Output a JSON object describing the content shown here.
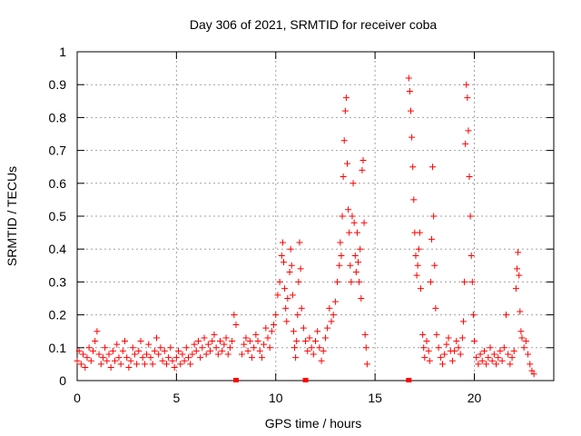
{
  "chart_data": {
    "type": "scatter",
    "title": "Day 306 of 2021, SRMTID for receiver coba",
    "xlabel": "GPS time / hours",
    "ylabel": "SRMTID / TECUs",
    "xlim": [
      0,
      24
    ],
    "ylim": [
      0,
      1
    ],
    "x_ticks": [
      0,
      5,
      10,
      15,
      20
    ],
    "x_tick_labels": [
      "0",
      "5",
      "10",
      "15",
      "20"
    ],
    "y_ticks": [
      0,
      0.1,
      0.2,
      0.3,
      0.4,
      0.5,
      0.6,
      0.7,
      0.8,
      0.9,
      1
    ],
    "y_tick_labels": [
      "0",
      "0.1",
      "0.2",
      "0.3",
      "0.4",
      "0.5",
      "0.6",
      "0.7",
      "0.8",
      "0.9",
      "1"
    ],
    "grid": true,
    "marker": "+",
    "series": [
      {
        "name": "SRMTID",
        "color": "#ff0000",
        "points": [
          [
            0.0,
            0.06
          ],
          [
            0.1,
            0.09
          ],
          [
            0.2,
            0.05
          ],
          [
            0.3,
            0.08
          ],
          [
            0.4,
            0.04
          ],
          [
            0.5,
            0.07
          ],
          [
            0.6,
            0.1
          ],
          [
            0.7,
            0.06
          ],
          [
            0.8,
            0.09
          ],
          [
            0.9,
            0.12
          ],
          [
            1.0,
            0.15
          ],
          [
            1.1,
            0.08
          ],
          [
            1.2,
            0.05
          ],
          [
            1.3,
            0.07
          ],
          [
            1.4,
            0.1
          ],
          [
            1.5,
            0.06
          ],
          [
            1.6,
            0.08
          ],
          [
            1.7,
            0.04
          ],
          [
            1.8,
            0.09
          ],
          [
            1.9,
            0.06
          ],
          [
            2.0,
            0.11
          ],
          [
            2.1,
            0.07
          ],
          [
            2.2,
            0.05
          ],
          [
            2.3,
            0.09
          ],
          [
            2.4,
            0.12
          ],
          [
            2.5,
            0.07
          ],
          [
            2.6,
            0.04
          ],
          [
            2.7,
            0.06
          ],
          [
            2.8,
            0.1
          ],
          [
            2.9,
            0.08
          ],
          [
            3.0,
            0.05
          ],
          [
            3.1,
            0.09
          ],
          [
            3.2,
            0.12
          ],
          [
            3.3,
            0.07
          ],
          [
            3.4,
            0.05
          ],
          [
            3.5,
            0.08
          ],
          [
            3.6,
            0.11
          ],
          [
            3.7,
            0.07
          ],
          [
            3.8,
            0.05
          ],
          [
            3.9,
            0.09
          ],
          [
            4.0,
            0.13
          ],
          [
            4.1,
            0.08
          ],
          [
            4.2,
            0.1
          ],
          [
            4.3,
            0.06
          ],
          [
            4.4,
            0.09
          ],
          [
            4.5,
            0.05
          ],
          [
            4.6,
            0.07
          ],
          [
            4.7,
            0.1
          ],
          [
            4.8,
            0.06
          ],
          [
            4.9,
            0.04
          ],
          [
            5.0,
            0.07
          ],
          [
            5.1,
            0.09
          ],
          [
            5.2,
            0.05
          ],
          [
            5.3,
            0.08
          ],
          [
            5.4,
            0.06
          ],
          [
            5.5,
            0.1
          ],
          [
            5.6,
            0.07
          ],
          [
            5.7,
            0.05
          ],
          [
            5.8,
            0.08
          ],
          [
            5.9,
            0.11
          ],
          [
            6.0,
            0.09
          ],
          [
            6.1,
            0.12
          ],
          [
            6.2,
            0.07
          ],
          [
            6.3,
            0.1
          ],
          [
            6.4,
            0.13
          ],
          [
            6.5,
            0.08
          ],
          [
            6.6,
            0.11
          ],
          [
            6.7,
            0.09
          ],
          [
            6.8,
            0.12
          ],
          [
            6.9,
            0.14
          ],
          [
            7.0,
            0.1
          ],
          [
            7.1,
            0.08
          ],
          [
            7.2,
            0.12
          ],
          [
            7.3,
            0.09
          ],
          [
            7.4,
            0.11
          ],
          [
            7.5,
            0.13
          ],
          [
            7.6,
            0.08
          ],
          [
            7.7,
            0.1
          ],
          [
            7.8,
            0.12
          ],
          [
            7.9,
            0.2
          ],
          [
            8.0,
            0.17
          ],
          [
            8.3,
            0.08
          ],
          [
            8.4,
            0.11
          ],
          [
            8.5,
            0.13
          ],
          [
            8.6,
            0.09
          ],
          [
            8.7,
            0.12
          ],
          [
            8.8,
            0.07
          ],
          [
            8.9,
            0.1
          ],
          [
            9.0,
            0.14
          ],
          [
            9.1,
            0.12
          ],
          [
            9.2,
            0.09
          ],
          [
            9.3,
            0.07
          ],
          [
            9.4,
            0.11
          ],
          [
            9.5,
            0.16
          ],
          [
            9.6,
            0.13
          ],
          [
            9.7,
            0.1
          ],
          [
            9.8,
            0.15
          ],
          [
            9.9,
            0.17
          ],
          [
            10.0,
            0.2
          ],
          [
            10.1,
            0.26
          ],
          [
            10.2,
            0.3
          ],
          [
            10.3,
            0.38
          ],
          [
            10.35,
            0.42
          ],
          [
            10.4,
            0.36
          ],
          [
            10.45,
            0.28
          ],
          [
            10.5,
            0.22
          ],
          [
            10.55,
            0.18
          ],
          [
            10.6,
            0.25
          ],
          [
            10.7,
            0.33
          ],
          [
            10.75,
            0.4
          ],
          [
            10.8,
            0.35
          ],
          [
            10.85,
            0.26
          ],
          [
            10.9,
            0.15
          ],
          [
            10.95,
            0.1
          ],
          [
            11.0,
            0.07
          ],
          [
            11.05,
            0.12
          ],
          [
            11.1,
            0.2
          ],
          [
            11.15,
            0.3
          ],
          [
            11.2,
            0.42
          ],
          [
            11.25,
            0.34
          ],
          [
            11.3,
            0.22
          ],
          [
            11.4,
            0.16
          ],
          [
            11.5,
            0.12
          ],
          [
            11.6,
            0.09
          ],
          [
            11.7,
            0.13
          ],
          [
            11.8,
            0.1
          ],
          [
            11.9,
            0.08
          ],
          [
            12.0,
            0.12
          ],
          [
            12.1,
            0.15
          ],
          [
            12.2,
            0.1
          ],
          [
            12.3,
            0.06
          ],
          [
            12.4,
            0.09
          ],
          [
            12.5,
            0.13
          ],
          [
            12.6,
            0.16
          ],
          [
            12.7,
            0.22
          ],
          [
            12.8,
            0.18
          ],
          [
            12.9,
            0.2
          ],
          [
            13.0,
            0.24
          ],
          [
            13.1,
            0.3
          ],
          [
            13.2,
            0.35
          ],
          [
            13.25,
            0.42
          ],
          [
            13.3,
            0.38
          ],
          [
            13.35,
            0.5
          ],
          [
            13.4,
            0.62
          ],
          [
            13.45,
            0.73
          ],
          [
            13.5,
            0.82
          ],
          [
            13.55,
            0.86
          ],
          [
            13.6,
            0.66
          ],
          [
            13.65,
            0.52
          ],
          [
            13.7,
            0.45
          ],
          [
            13.75,
            0.35
          ],
          [
            13.8,
            0.3
          ],
          [
            13.85,
            0.5
          ],
          [
            13.9,
            0.6
          ],
          [
            13.95,
            0.48
          ],
          [
            14.0,
            0.38
          ],
          [
            14.05,
            0.33
          ],
          [
            14.1,
            0.45
          ],
          [
            14.15,
            0.36
          ],
          [
            14.2,
            0.3
          ],
          [
            14.25,
            0.4
          ],
          [
            14.3,
            0.25
          ],
          [
            14.35,
            0.64
          ],
          [
            14.4,
            0.67
          ],
          [
            14.45,
            0.48
          ],
          [
            14.5,
            0.14
          ],
          [
            14.55,
            0.1
          ],
          [
            14.6,
            0.05
          ],
          [
            16.7,
            0.92
          ],
          [
            16.75,
            0.88
          ],
          [
            16.8,
            0.82
          ],
          [
            16.85,
            0.74
          ],
          [
            16.9,
            0.65
          ],
          [
            16.95,
            0.55
          ],
          [
            17.0,
            0.45
          ],
          [
            17.05,
            0.38
          ],
          [
            17.1,
            0.32
          ],
          [
            17.15,
            0.35
          ],
          [
            17.2,
            0.4
          ],
          [
            17.25,
            0.45
          ],
          [
            17.3,
            0.28
          ],
          [
            17.4,
            0.14
          ],
          [
            17.45,
            0.1
          ],
          [
            17.5,
            0.07
          ],
          [
            17.6,
            0.12
          ],
          [
            17.7,
            0.09
          ],
          [
            17.75,
            0.06
          ],
          [
            17.8,
            0.3
          ],
          [
            17.85,
            0.43
          ],
          [
            17.9,
            0.65
          ],
          [
            17.95,
            0.5
          ],
          [
            18.0,
            0.35
          ],
          [
            18.05,
            0.22
          ],
          [
            18.1,
            0.14
          ],
          [
            18.2,
            0.1
          ],
          [
            18.3,
            0.07
          ],
          [
            18.4,
            0.05
          ],
          [
            18.5,
            0.08
          ],
          [
            18.6,
            0.11
          ],
          [
            18.7,
            0.13
          ],
          [
            18.8,
            0.09
          ],
          [
            18.9,
            0.06
          ],
          [
            19.0,
            0.09
          ],
          [
            19.1,
            0.12
          ],
          [
            19.2,
            0.1
          ],
          [
            19.3,
            0.08
          ],
          [
            19.4,
            0.13
          ],
          [
            19.45,
            0.18
          ],
          [
            19.5,
            0.3
          ],
          [
            19.55,
            0.72
          ],
          [
            19.6,
            0.9
          ],
          [
            19.65,
            0.86
          ],
          [
            19.7,
            0.76
          ],
          [
            19.75,
            0.62
          ],
          [
            19.8,
            0.5
          ],
          [
            19.85,
            0.38
          ],
          [
            19.9,
            0.3
          ],
          [
            19.95,
            0.2
          ],
          [
            20.0,
            0.12
          ],
          [
            20.1,
            0.07
          ],
          [
            20.2,
            0.05
          ],
          [
            20.3,
            0.08
          ],
          [
            20.4,
            0.06
          ],
          [
            20.5,
            0.09
          ],
          [
            20.6,
            0.05
          ],
          [
            20.7,
            0.07
          ],
          [
            20.8,
            0.1
          ],
          [
            20.9,
            0.06
          ],
          [
            21.0,
            0.08
          ],
          [
            21.1,
            0.05
          ],
          [
            21.2,
            0.07
          ],
          [
            21.3,
            0.09
          ],
          [
            21.4,
            0.06
          ],
          [
            21.5,
            0.1
          ],
          [
            21.6,
            0.2
          ],
          [
            21.7,
            0.08
          ],
          [
            21.8,
            0.05
          ],
          [
            21.9,
            0.07
          ],
          [
            22.0,
            0.09
          ],
          [
            22.1,
            0.28
          ],
          [
            22.15,
            0.34
          ],
          [
            22.2,
            0.39
          ],
          [
            22.25,
            0.32
          ],
          [
            22.3,
            0.21
          ],
          [
            22.35,
            0.15
          ],
          [
            22.4,
            0.13
          ],
          [
            22.5,
            0.1
          ],
          [
            22.6,
            0.12
          ],
          [
            22.7,
            0.08
          ],
          [
            22.8,
            0.05
          ],
          [
            22.9,
            0.03
          ],
          [
            23.0,
            0.02
          ]
        ]
      }
    ],
    "outage_markers_x": [
      8.0,
      11.5,
      16.7
    ]
  }
}
